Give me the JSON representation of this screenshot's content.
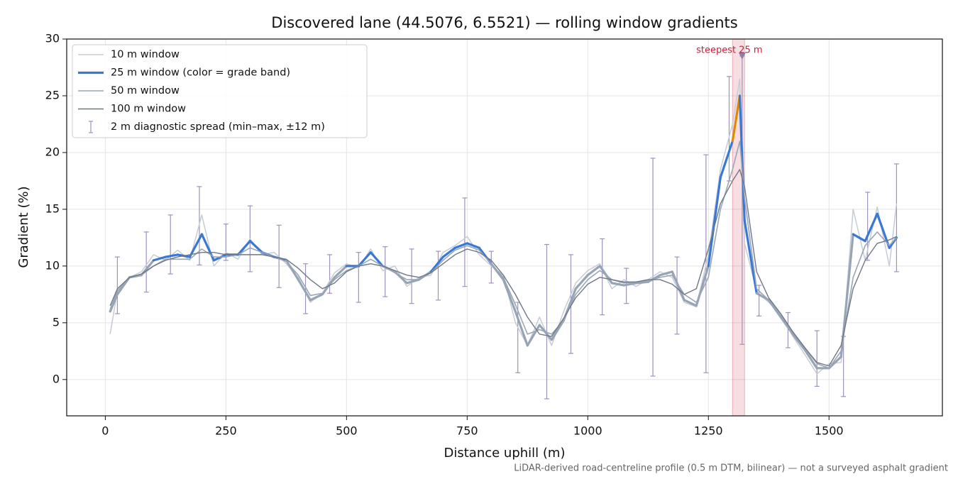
{
  "chart_data": {
    "type": "line",
    "title": "Discovered lane (44.5076, 6.5521) — rolling window gradients",
    "xlabel": "Distance uphill (m)",
    "ylabel": "Gradient (%)",
    "footnote": "LiDAR-derived road-centreline profile (0.5 m DTM, bilinear) — not a surveyed asphalt gradient",
    "xlim": [
      -80,
      1735
    ],
    "ylim": [
      -3.2,
      30
    ],
    "xticks": [
      0,
      250,
      500,
      750,
      1000,
      1250,
      1500
    ],
    "yticks": [
      0,
      5,
      10,
      15,
      20,
      25,
      30
    ],
    "grid": true,
    "legend": "upper left",
    "x": [
      10,
      25,
      50,
      75,
      100,
      125,
      150,
      175,
      200,
      225,
      250,
      275,
      300,
      325,
      350,
      375,
      400,
      425,
      450,
      475,
      500,
      525,
      550,
      575,
      600,
      625,
      650,
      675,
      700,
      725,
      750,
      775,
      800,
      825,
      850,
      875,
      900,
      925,
      950,
      975,
      1000,
      1025,
      1050,
      1075,
      1100,
      1125,
      1150,
      1175,
      1200,
      1225,
      1250,
      1275,
      1300,
      1315,
      1325,
      1350,
      1375,
      1400,
      1425,
      1450,
      1475,
      1500,
      1525,
      1550,
      1575,
      1600,
      1625,
      1640
    ],
    "series": [
      {
        "name": "10 m window",
        "color": "#c6ccd6",
        "width": 1.5,
        "values": [
          4,
          7.8,
          9,
          9.5,
          11,
          10.5,
          11.4,
          10.5,
          14.5,
          10,
          11.2,
          10.6,
          12.4,
          11,
          11.2,
          10.2,
          9,
          6.8,
          7.6,
          9.4,
          10.2,
          9.8,
          11.5,
          9.6,
          10,
          8.2,
          9,
          9.2,
          11.2,
          11.8,
          12.6,
          11,
          10,
          9.2,
          5,
          3,
          5.5,
          3,
          6,
          8.5,
          9.6,
          10.2,
          8,
          8.8,
          8.2,
          8.8,
          9.5,
          9,
          6.8,
          6.4,
          11,
          18.5,
          22.5,
          26.5,
          12,
          7.8,
          6.8,
          5.8,
          3.8,
          2.2,
          0.5,
          1.4,
          1.5,
          15,
          10.5,
          15.2,
          10,
          15.5
        ]
      },
      {
        "name": "25 m window (color = grade band)",
        "color": "#3a78d6",
        "width": 3.2,
        "base_color": "#97a4b6",
        "grade_bands": [
          {
            "above": 10,
            "color": "#3a78d6"
          },
          {
            "above": 20,
            "color": "#e08a00"
          }
        ],
        "values": [
          6,
          7.5,
          9,
          9.2,
          10.5,
          10.8,
          11,
          10.8,
          12.8,
          10.5,
          11,
          11,
          12.2,
          11.2,
          10.8,
          10.5,
          8.8,
          7,
          7.5,
          9,
          10,
          10,
          11.2,
          10,
          9.5,
          8.5,
          8.8,
          9.5,
          10.8,
          11.6,
          12,
          11.6,
          10.2,
          8.8,
          6,
          3,
          4.8,
          3.5,
          5.2,
          8,
          9.2,
          10,
          8.5,
          8.3,
          8.5,
          8.6,
          9.2,
          9.5,
          7,
          6.5,
          10,
          17.8,
          21,
          25,
          14,
          7.6,
          7,
          5.5,
          4,
          2.6,
          1,
          1,
          2,
          12.8,
          12.2,
          14.6,
          11.6,
          12.5
        ]
      },
      {
        "name": "50 m window",
        "color": "#9aa6b6",
        "width": 1.6,
        "values": [
          6.2,
          7.8,
          9,
          9.2,
          10,
          10.6,
          10.6,
          10.6,
          11.5,
          10.8,
          10.8,
          11,
          11.6,
          11.2,
          10.8,
          10.4,
          9.2,
          7.4,
          7.6,
          8.8,
          9.6,
          10,
          10.6,
          10,
          9.4,
          8.8,
          8.8,
          9.4,
          10.5,
          11.4,
          11.8,
          11.4,
          10.2,
          9,
          6.6,
          4,
          4.4,
          4,
          5.2,
          7.5,
          8.8,
          9.6,
          8.8,
          8.5,
          8.6,
          8.7,
          9,
          9.2,
          7.5,
          6.8,
          9,
          15,
          18.5,
          21,
          16,
          8,
          7,
          5.6,
          4.2,
          2.8,
          1.4,
          1,
          2.5,
          9,
          11.8,
          13,
          11.8,
          12.5
        ]
      },
      {
        "name": "100 m window",
        "color": "#6f7886",
        "width": 1.4,
        "values": [
          6.5,
          8,
          9,
          9.3,
          10,
          10.5,
          10.8,
          11,
          11.2,
          11.2,
          11,
          11,
          11,
          11,
          10.8,
          10.6,
          9.8,
          8.8,
          8,
          8.5,
          9.5,
          10,
          10.2,
          10,
          9.6,
          9.2,
          9,
          9.4,
          10.2,
          11,
          11.5,
          11.2,
          10.5,
          9.2,
          7.5,
          5.5,
          4,
          3.8,
          5.4,
          7.2,
          8.4,
          9,
          8.8,
          8.6,
          8.6,
          8.8,
          8.8,
          8.4,
          7.5,
          8,
          11.5,
          15.5,
          17.5,
          18.5,
          17,
          9.5,
          7.2,
          5.8,
          4.2,
          2.8,
          1.5,
          1.2,
          3,
          8,
          10.5,
          12,
          12.3,
          12.6
        ]
      }
    ],
    "spread": {
      "name": "2 m diagnostic spread (min–max, ±12 m)",
      "color": "#9d93bb",
      "x": [
        25,
        85,
        135,
        195,
        250,
        300,
        360,
        415,
        465,
        525,
        580,
        635,
        690,
        745,
        800,
        855,
        915,
        965,
        1030,
        1080,
        1135,
        1185,
        1245,
        1293,
        1320,
        1355,
        1415,
        1475,
        1530,
        1580,
        1640
      ],
      "min": [
        5.8,
        7.7,
        9.3,
        10.1,
        10.5,
        9.5,
        8.1,
        5.8,
        7.6,
        6.8,
        7.3,
        6.7,
        7,
        8.2,
        8.5,
        0.6,
        -1.7,
        2.3,
        5.7,
        6.7,
        0.3,
        4,
        0.6,
        17.5,
        3.1,
        5.6,
        2.8,
        -0.6,
        -1.5,
        10.5,
        9.5
      ],
      "max": [
        10.8,
        13,
        14.5,
        17,
        13.7,
        15.3,
        13.6,
        10.2,
        11,
        11.2,
        11.7,
        11.5,
        11.3,
        16,
        11.3,
        6.8,
        11.9,
        11,
        12.4,
        9.8,
        19.5,
        10.8,
        19.8,
        26.7,
        28.5,
        8.3,
        5.9,
        4.3,
        3.8,
        16.5,
        19
      ]
    },
    "annotation": {
      "text": "steepest 25 m",
      "span": [
        1300,
        1325
      ],
      "x": 1320,
      "y": 28.5,
      "color": "#c8203a"
    }
  }
}
